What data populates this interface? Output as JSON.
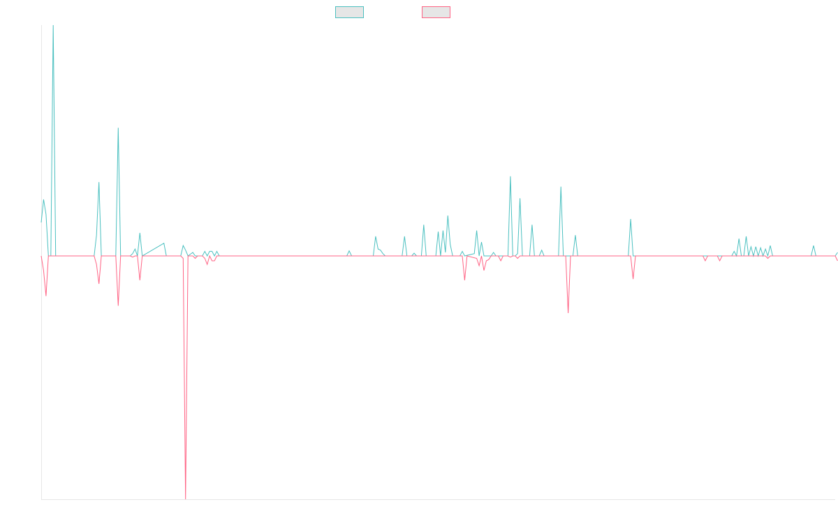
{
  "chart_data": {
    "type": "line",
    "title": "",
    "xlabel": "",
    "ylabel": "",
    "legend_position": "top-center",
    "legend": [
      {
        "color": "#4bc0c0"
      },
      {
        "color": "#ff6384"
      }
    ],
    "grid": false,
    "ylim": [
      -1,
      1
    ],
    "x_count": 330,
    "series": [
      {
        "color": "#4bc0c0",
        "sparse_values": [
          [
            0,
            0.145
          ],
          [
            1,
            0.245
          ],
          [
            2,
            0.18
          ],
          [
            3,
            0
          ],
          [
            4,
            0
          ],
          [
            5,
            1
          ],
          [
            6,
            0
          ],
          [
            22,
            0
          ],
          [
            23,
            0.09
          ],
          [
            24,
            0.32
          ],
          [
            25,
            0
          ],
          [
            31,
            0
          ],
          [
            32,
            0.555
          ],
          [
            33,
            0
          ],
          [
            37,
            0
          ],
          [
            38,
            0.01
          ],
          [
            39,
            0.03
          ],
          [
            40,
            0
          ],
          [
            41,
            0.1
          ],
          [
            42,
            0
          ],
          [
            51,
            0.055
          ],
          [
            52,
            0
          ],
          [
            58,
            0
          ],
          [
            59,
            0.045
          ],
          [
            60,
            0.025
          ],
          [
            61,
            0
          ],
          [
            63,
            0.015
          ],
          [
            64,
            0
          ],
          [
            67,
            0
          ],
          [
            68,
            0.02
          ],
          [
            69,
            0
          ],
          [
            70,
            0.02
          ],
          [
            71,
            0.02
          ],
          [
            72,
            0
          ],
          [
            73,
            0.02
          ],
          [
            74,
            0
          ],
          [
            127,
            0
          ],
          [
            128,
            0.022
          ],
          [
            129,
            0
          ],
          [
            138,
            0
          ],
          [
            139,
            0.085
          ],
          [
            140,
            0.03
          ],
          [
            141,
            0.025
          ],
          [
            142,
            0.01
          ],
          [
            143,
            0
          ],
          [
            150,
            0
          ],
          [
            151,
            0.085
          ],
          [
            152,
            0
          ],
          [
            154,
            0
          ],
          [
            155,
            0.012
          ],
          [
            156,
            0
          ],
          [
            158,
            0
          ],
          [
            159,
            0.135
          ],
          [
            160,
            0
          ],
          [
            164,
            0
          ],
          [
            165,
            0.105
          ],
          [
            166,
            0
          ],
          [
            167,
            0.11
          ],
          [
            168,
            0.015
          ],
          [
            169,
            0.175
          ],
          [
            170,
            0.05
          ],
          [
            171,
            0
          ],
          [
            174,
            0
          ],
          [
            175,
            0.02
          ],
          [
            176,
            0
          ],
          [
            180,
            0.01
          ],
          [
            181,
            0.11
          ],
          [
            182,
            0
          ],
          [
            183,
            0.06
          ],
          [
            184,
            0
          ],
          [
            187,
            0
          ],
          [
            188,
            0.015
          ],
          [
            189,
            0
          ],
          [
            194,
            0
          ],
          [
            195,
            0.345
          ],
          [
            196,
            0
          ],
          [
            197,
            0
          ],
          [
            198,
            0.01
          ],
          [
            199,
            0.25
          ],
          [
            200,
            0
          ],
          [
            203,
            0
          ],
          [
            204,
            0.135
          ],
          [
            205,
            0
          ],
          [
            207,
            0
          ],
          [
            208,
            0.025
          ],
          [
            209,
            0
          ],
          [
            215,
            0
          ],
          [
            216,
            0.3
          ],
          [
            217,
            0
          ],
          [
            221,
            0
          ],
          [
            222,
            0.09
          ],
          [
            223,
            0
          ],
          [
            244,
            0
          ],
          [
            245,
            0.16
          ],
          [
            246,
            0
          ],
          [
            287,
            0
          ],
          [
            288,
            0.02
          ],
          [
            289,
            0
          ],
          [
            289,
            0
          ],
          [
            290,
            0.075
          ],
          [
            291,
            0
          ],
          [
            292,
            0
          ],
          [
            293,
            0.085
          ],
          [
            294,
            0
          ],
          [
            295,
            0.04
          ],
          [
            296,
            0
          ],
          [
            297,
            0.04
          ],
          [
            298,
            0
          ],
          [
            299,
            0.035
          ],
          [
            300,
            0
          ],
          [
            301,
            0.03
          ],
          [
            302,
            0
          ],
          [
            303,
            0.045
          ],
          [
            304,
            0
          ],
          [
            320,
            0
          ],
          [
            321,
            0.045
          ],
          [
            322,
            0
          ],
          [
            330,
            0
          ],
          [
            331,
            0.015
          ]
        ]
      },
      {
        "color": "#ff6384",
        "sparse_values": [
          [
            0,
            0
          ],
          [
            1,
            -0.06
          ],
          [
            2,
            -0.165
          ],
          [
            3,
            0
          ],
          [
            22,
            0
          ],
          [
            23,
            -0.035
          ],
          [
            24,
            -0.115
          ],
          [
            25,
            0
          ],
          [
            31,
            0
          ],
          [
            32,
            -0.205
          ],
          [
            33,
            0
          ],
          [
            37,
            0
          ],
          [
            38,
            -0.005
          ],
          [
            39,
            0
          ],
          [
            40,
            0
          ],
          [
            41,
            -0.1
          ],
          [
            42,
            0
          ],
          [
            58,
            0
          ],
          [
            59,
            -0.01
          ],
          [
            60,
            -1
          ],
          [
            61,
            0
          ],
          [
            63,
            0
          ],
          [
            64,
            -0.01
          ],
          [
            65,
            0
          ],
          [
            67,
            0
          ],
          [
            68,
            -0.01
          ],
          [
            69,
            -0.035
          ],
          [
            70,
            0
          ],
          [
            71,
            -0.02
          ],
          [
            72,
            -0.02
          ],
          [
            73,
            0
          ],
          [
            175,
            0
          ],
          [
            176,
            -0.1
          ],
          [
            177,
            0
          ],
          [
            181,
            -0.01
          ],
          [
            182,
            -0.04
          ],
          [
            183,
            0
          ],
          [
            184,
            -0.06
          ],
          [
            185,
            -0.02
          ],
          [
            186,
            -0.015
          ],
          [
            187,
            0
          ],
          [
            188,
            0
          ],
          [
            189,
            0
          ],
          [
            190,
            0
          ],
          [
            191,
            -0.02
          ],
          [
            192,
            0
          ],
          [
            193,
            0
          ],
          [
            194,
            0
          ],
          [
            195,
            -0.005
          ],
          [
            196,
            0
          ],
          [
            197,
            0
          ],
          [
            198,
            -0.01
          ],
          [
            199,
            0
          ],
          [
            200,
            0
          ],
          [
            218,
            0
          ],
          [
            219,
            -0.235
          ],
          [
            220,
            0
          ],
          [
            245,
            0
          ],
          [
            246,
            -0.095
          ],
          [
            247,
            0
          ],
          [
            275,
            0
          ],
          [
            276,
            -0.02
          ],
          [
            277,
            0
          ],
          [
            281,
            0
          ],
          [
            282,
            -0.02
          ],
          [
            283,
            0
          ],
          [
            301,
            0
          ],
          [
            302,
            -0.01
          ],
          [
            303,
            0
          ],
          [
            330,
            0
          ],
          [
            331,
            -0.02
          ]
        ]
      }
    ]
  }
}
